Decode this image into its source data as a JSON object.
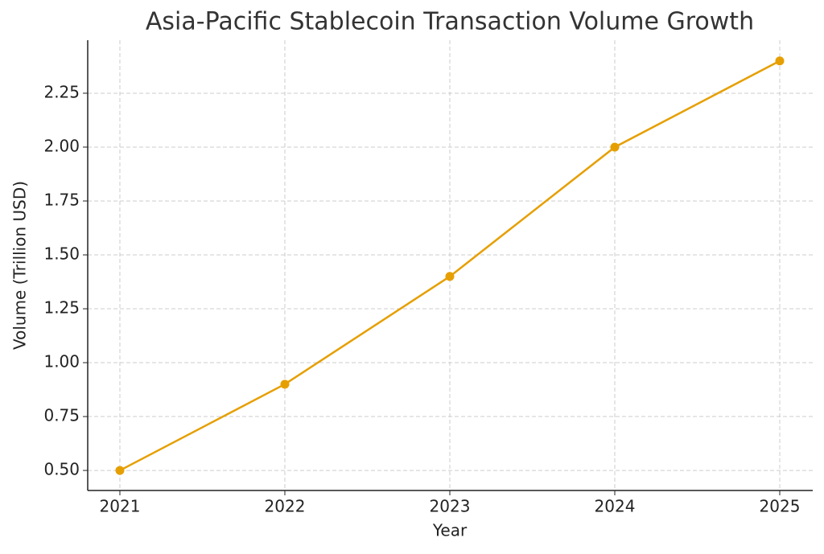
{
  "chart_data": {
    "type": "line",
    "title": "Asia-Pacific Stablecoin Transaction Volume Growth",
    "x_label": "Year",
    "y_label": "Volume (Trillion USD)",
    "x": [
      2021,
      2022,
      2023,
      2024,
      2025
    ],
    "series": [
      {
        "name": "Volume",
        "color": "#e69f00",
        "values": [
          0.5,
          0.9,
          1.4,
          2.0,
          2.4
        ]
      }
    ],
    "xlim": [
      2020.805,
      2025.2
    ],
    "xticks": [
      2021,
      2022,
      2023,
      2024,
      2025
    ],
    "ylim": [
      0.407,
      2.496
    ],
    "yticks": [
      {
        "value": 0.5,
        "label": "0.50"
      },
      {
        "value": 0.75,
        "label": "0.75"
      },
      {
        "value": 1.0,
        "label": "1.00"
      },
      {
        "value": 1.25,
        "label": "1.25"
      },
      {
        "value": 1.5,
        "label": "1.50"
      },
      {
        "value": 1.75,
        "label": "1.75"
      },
      {
        "value": 2.0,
        "label": "2.00"
      },
      {
        "value": 2.25,
        "label": "2.25"
      }
    ],
    "grid": true
  }
}
